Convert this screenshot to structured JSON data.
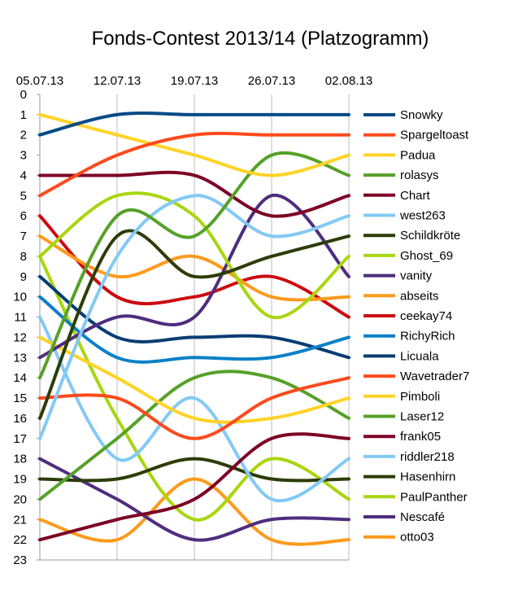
{
  "chart_data": {
    "type": "line",
    "title": "Fonds-Contest 2013/14 (Platzogramm)",
    "xlabel": "",
    "ylabel": "",
    "categories": [
      "05.07.13",
      "12.07.13",
      "19.07.13",
      "26.07.13",
      "02.08.13"
    ],
    "ylim": [
      0,
      23
    ],
    "y_reversed": true,
    "y_ticks": [
      "0",
      "1",
      "2",
      "3",
      "4",
      "5",
      "6",
      "7",
      "8",
      "9",
      "10",
      "11",
      "12",
      "13",
      "14",
      "15",
      "16",
      "17",
      "18",
      "19",
      "20",
      "21",
      "22",
      "23"
    ],
    "legend_position": "right",
    "series": [
      {
        "name": "Snowky",
        "color": "#044a86",
        "values": [
          2,
          1,
          1,
          1,
          1
        ]
      },
      {
        "name": "Spargeltoast",
        "color": "#ff4a1c",
        "values": [
          5,
          3,
          2,
          2,
          2
        ]
      },
      {
        "name": "Padua",
        "color": "#ffd327",
        "values": [
          1,
          2,
          3,
          4,
          3
        ]
      },
      {
        "name": "rolasys",
        "color": "#56a128",
        "values": [
          14,
          6,
          7,
          3,
          4
        ]
      },
      {
        "name": "Chart",
        "color": "#7d0025",
        "values": [
          4,
          4,
          4,
          6,
          5
        ]
      },
      {
        "name": "west263",
        "color": "#84c9f5",
        "values": [
          17,
          8,
          5,
          7,
          6
        ]
      },
      {
        "name": "Schildkröte",
        "color": "#2c3d09",
        "values": [
          16,
          7,
          9,
          8,
          7
        ]
      },
      {
        "name": "Ghost_69",
        "color": "#a9d60f",
        "values": [
          8,
          5,
          6,
          11,
          8
        ]
      },
      {
        "name": "vanity",
        "color": "#4f2d7e",
        "values": [
          13,
          11,
          11,
          5,
          9
        ]
      },
      {
        "name": "abseits",
        "color": "#ff9a1c",
        "values": [
          7,
          9,
          8,
          10,
          10
        ]
      },
      {
        "name": "ceekay74",
        "color": "#cc0a0f",
        "values": [
          6,
          10,
          10,
          9,
          11
        ]
      },
      {
        "name": "RichyRich",
        "color": "#0b80c8",
        "values": [
          10,
          13,
          13,
          13,
          12
        ]
      },
      {
        "name": "Licuala",
        "color": "#083d73",
        "values": [
          9,
          12,
          12,
          12,
          13
        ]
      },
      {
        "name": "Wavetrader7",
        "color": "#ff4a1c",
        "values": [
          15,
          15,
          17,
          15,
          14
        ]
      },
      {
        "name": "Pimboli",
        "color": "#ffd327",
        "values": [
          12,
          14,
          16,
          16,
          15
        ]
      },
      {
        "name": "Laser12",
        "color": "#56a128",
        "values": [
          20,
          17,
          14,
          14,
          16
        ]
      },
      {
        "name": "frank05",
        "color": "#7d0025",
        "values": [
          22,
          21,
          20,
          17,
          17
        ]
      },
      {
        "name": "riddler218",
        "color": "#84c9f5",
        "values": [
          11,
          18,
          15,
          20,
          18
        ]
      },
      {
        "name": "Hasenhirn",
        "color": "#2c3d09",
        "values": [
          19,
          19,
          18,
          19,
          19
        ]
      },
      {
        "name": "PaulPanther",
        "color": "#a9d60f",
        "values": [
          8,
          16,
          21,
          18,
          20
        ]
      },
      {
        "name": "Nescafé",
        "color": "#4f2d7e",
        "values": [
          18,
          20,
          22,
          21,
          21
        ]
      },
      {
        "name": "otto03",
        "color": "#ff9a1c",
        "values": [
          21,
          22,
          19,
          22,
          22
        ]
      }
    ]
  }
}
